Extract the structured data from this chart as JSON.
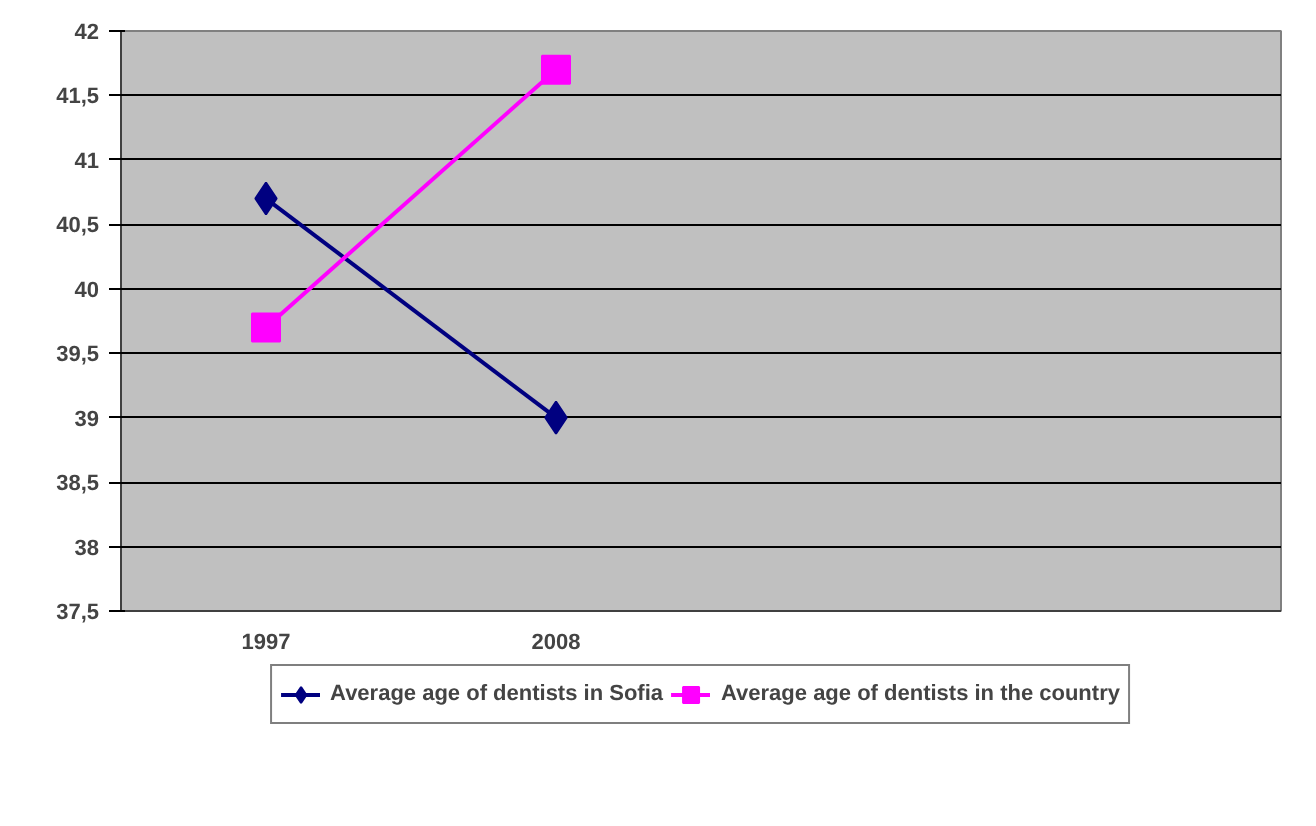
{
  "chart_data": {
    "type": "line",
    "categories": [
      "1997",
      "2008",
      null,
      null
    ],
    "series": [
      {
        "name": "Average age of dentists in Sofia",
        "color": "#000080",
        "marker": "diamond",
        "values": [
          40.7,
          39.0,
          null,
          null
        ]
      },
      {
        "name": "Average age of dentists in the country",
        "color": "#ff00ff",
        "marker": "square",
        "values": [
          39.7,
          41.7,
          null,
          null
        ]
      }
    ],
    "ylim": [
      37.5,
      42
    ],
    "yticks": [
      {
        "value": 37.5,
        "label": "37,5"
      },
      38,
      {
        "value": 38.5,
        "label": "38,5"
      },
      39,
      {
        "value": 39.5,
        "label": "39,5"
      },
      40,
      {
        "value": 40.5,
        "label": "40,5"
      },
      41,
      {
        "value": 41.5,
        "label": "41,5"
      },
      42
    ],
    "grid": "y",
    "legend": "bottom"
  }
}
